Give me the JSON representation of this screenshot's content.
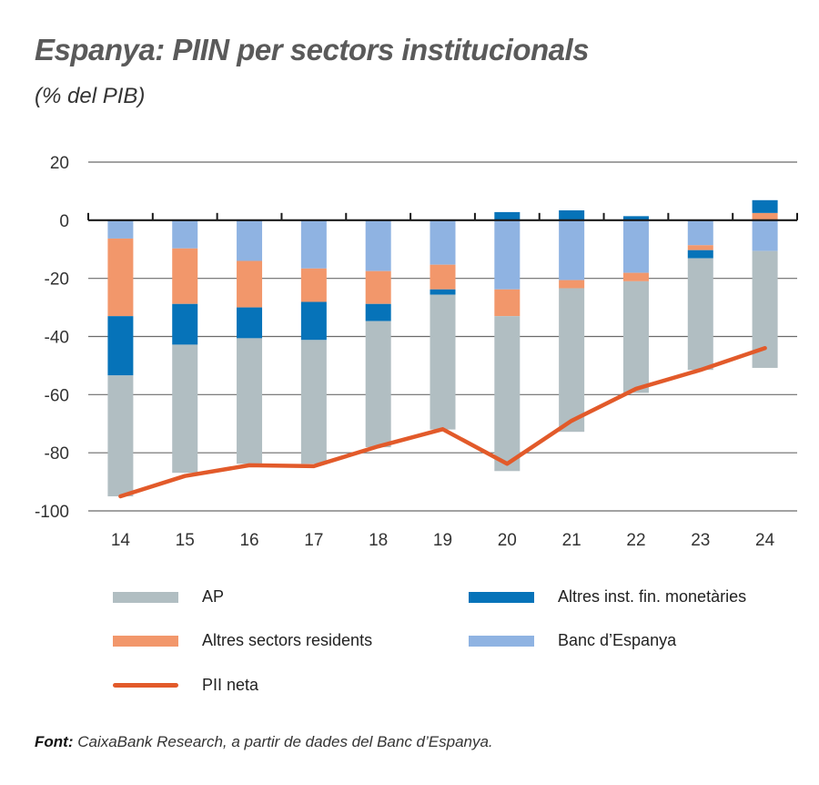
{
  "header": {
    "title": "Espanya: PIIN per sectors institucionals",
    "subtitle": "(% del PIB)"
  },
  "legend": [
    {
      "key": "ap",
      "label": "AP",
      "color": "#b1bec2",
      "kind": "bar"
    },
    {
      "key": "aifm",
      "label": "Altres inst. fin. monetàries",
      "color": "#0673b9",
      "kind": "bar"
    },
    {
      "key": "asr",
      "label": "Altres sectors residents",
      "color": "#f2976b",
      "kind": "bar"
    },
    {
      "key": "bde",
      "label": "Banc d’Espanya",
      "color": "#8fb3e2",
      "kind": "bar"
    },
    {
      "key": "pii",
      "label": "PII neta",
      "color": "#e25a2a",
      "kind": "line"
    }
  ],
  "source": {
    "label": "Font:",
    "text": "CaixaBank Research, a partir de dades del Banc d’Espanya."
  },
  "chart_data": {
    "type": "bar",
    "stacked": true,
    "title": "Espanya: PIIN per sectors institucionals",
    "subtitle": "(% del PIB)",
    "xlabel": "",
    "ylabel": "",
    "ylim": [
      -100,
      20
    ],
    "yticks": [
      20,
      0,
      -20,
      -40,
      -60,
      -80,
      -100
    ],
    "grid": true,
    "legend_position": "bottom",
    "categories": [
      "14",
      "15",
      "16",
      "17",
      "18",
      "19",
      "20",
      "21",
      "22",
      "23",
      "24"
    ],
    "series": [
      {
        "name": "Banc d’Espanya",
        "type": "bar",
        "color": "#8fb3e2",
        "values": [
          -6.3,
          -9.7,
          -14.0,
          -16.6,
          -17.5,
          -15.3,
          -23.8,
          -20.6,
          -18.1,
          -8.6,
          -10.6
        ]
      },
      {
        "name": "Altres sectors residents",
        "type": "bar",
        "color": "#f2976b",
        "values": [
          -26.7,
          -19.1,
          -16.0,
          -11.5,
          -11.3,
          -8.5,
          -9.2,
          -2.8,
          -2.9,
          -1.7,
          2.5
        ]
      },
      {
        "name": "Altres inst. fin. monetàries",
        "type": "bar",
        "color": "#0673b9",
        "values": [
          -20.4,
          -14.0,
          -10.6,
          -13.1,
          -5.9,
          -1.8,
          2.8,
          3.4,
          1.4,
          -2.8,
          4.4
        ]
      },
      {
        "name": "AP",
        "type": "bar",
        "color": "#b1bec2",
        "values": [
          -41.6,
          -44.1,
          -43.2,
          -42.6,
          -43.4,
          -46.4,
          -53.3,
          -49.4,
          -38.4,
          -38.4,
          -40.2
        ]
      },
      {
        "name": "PII neta",
        "type": "line",
        "color": "#e25a2a",
        "values": [
          -95.0,
          -88.0,
          -84.3,
          -84.6,
          -77.8,
          -71.9,
          -83.8,
          -69.0,
          -58.0,
          -51.5,
          -44.0
        ]
      }
    ]
  }
}
